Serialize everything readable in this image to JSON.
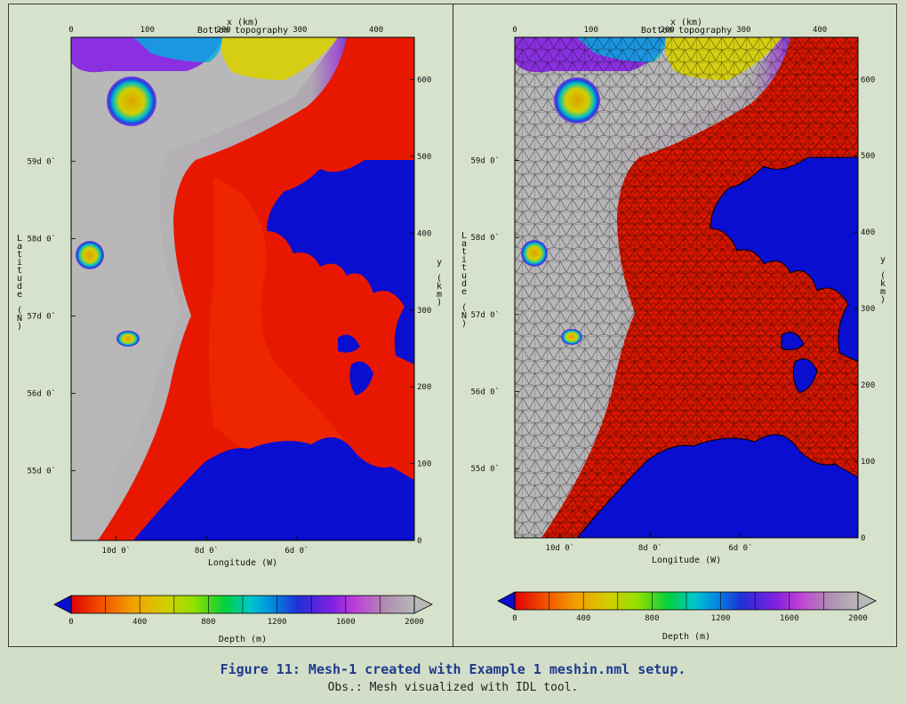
{
  "figure": {
    "caption_title": "Figure 11: Mesh-1 created with Example 1 meshin.nml setup.",
    "caption_note": "Obs.: Mesh visualized with IDL tool."
  },
  "colors": {
    "land": "#0a0ed0",
    "frame": "#3a3a3a",
    "background": "#d6e2cc",
    "colormap": [
      "#e00000",
      "#f04a00",
      "#f4a000",
      "#d0d000",
      "#90e000",
      "#00d040",
      "#00c8c8",
      "#0090e0",
      "#2030d8",
      "#8020e0",
      "#c040d8",
      "#b090b0",
      "#b8b8b8"
    ]
  },
  "chart_data": [
    {
      "type": "heatmap",
      "panel": "left",
      "title": "Bottom topography",
      "top_axis_label": "x (km)",
      "x_top_ticks": [
        "0",
        "100",
        "200",
        "300",
        "400"
      ],
      "x_top_values": [
        0,
        100,
        200,
        300,
        400
      ],
      "x_top_range": [
        0,
        450
      ],
      "right_axis_label": "y (km)",
      "y_right_ticks": [
        "0",
        "100",
        "200",
        "300",
        "400",
        "500",
        "600"
      ],
      "y_right_values": [
        0,
        100,
        200,
        300,
        400,
        500,
        600
      ],
      "y_right_range": [
        0,
        655
      ],
      "xlabel": "Longitude (W)",
      "x_bottom_ticks": [
        "10d 0`",
        "8d 0`",
        "6d 0`"
      ],
      "x_bottom_lon": [
        10,
        8,
        6
      ],
      "ylabel": "Latitude (N)",
      "y_left_ticks": [
        "59d 0`",
        "58d 0`",
        "57d 0`",
        "56d 0`",
        "55d 0`"
      ],
      "y_left_lat": [
        59,
        58,
        57,
        56,
        55
      ],
      "lon_range": [
        11.0,
        3.4
      ],
      "lat_range": [
        54.1,
        60.6
      ],
      "mesh_overlay": false,
      "colorbar": {
        "label": "Depth (m)",
        "ticks": [
          "0",
          "400",
          "800",
          "1200",
          "1600",
          "2000"
        ],
        "values": [
          0,
          400,
          800,
          1200,
          1600,
          2000
        ],
        "range": [
          0,
          2000
        ]
      }
    },
    {
      "type": "heatmap",
      "panel": "right",
      "title": "Bottom topography",
      "top_axis_label": "x (km)",
      "x_top_ticks": [
        "0",
        "100",
        "200",
        "300",
        "400"
      ],
      "x_top_values": [
        0,
        100,
        200,
        300,
        400
      ],
      "x_top_range": [
        0,
        450
      ],
      "right_axis_label": "y (km)",
      "y_right_ticks": [
        "0",
        "100",
        "200",
        "300",
        "400",
        "500",
        "600"
      ],
      "y_right_values": [
        0,
        100,
        200,
        300,
        400,
        500,
        600
      ],
      "y_right_range": [
        0,
        655
      ],
      "xlabel": "Longitude (W)",
      "x_bottom_ticks": [
        "10d 0`",
        "8d 0`",
        "6d 0`"
      ],
      "x_bottom_lon": [
        10,
        8,
        6
      ],
      "ylabel": "Latitude (N)",
      "y_left_ticks": [
        "59d 0`",
        "58d 0`",
        "57d 0`",
        "56d 0`",
        "55d 0`"
      ],
      "y_left_lat": [
        59,
        58,
        57,
        56,
        55
      ],
      "lon_range": [
        11.0,
        3.4
      ],
      "lat_range": [
        54.1,
        60.6
      ],
      "mesh_overlay": true,
      "colorbar": {
        "label": "Depth (m)",
        "ticks": [
          "0",
          "400",
          "800",
          "1200",
          "1600",
          "2000"
        ],
        "values": [
          0,
          400,
          800,
          1200,
          1600,
          2000
        ],
        "range": [
          0,
          2000
        ]
      }
    }
  ]
}
